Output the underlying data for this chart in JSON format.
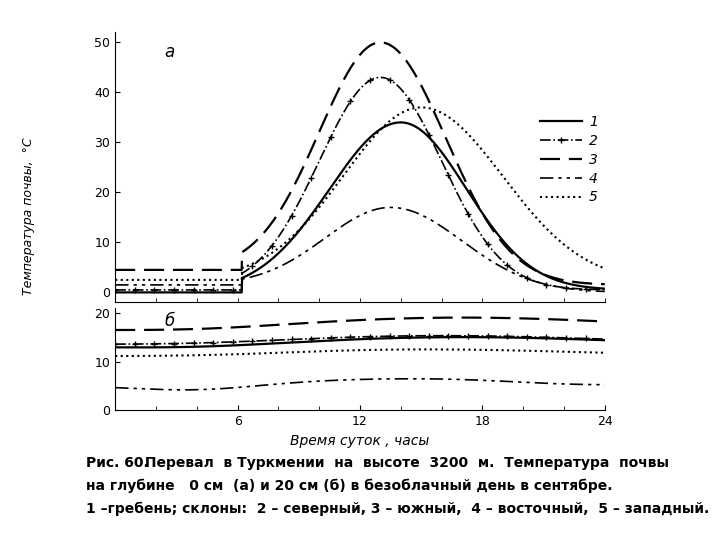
{
  "title_a": "а",
  "title_b": "б",
  "xlabel": "Время суток , часы",
  "ylabel": "Температура почвы,  °С",
  "xlim": [
    0,
    24
  ],
  "xticks": [
    6,
    12,
    18,
    24
  ],
  "ylim_a": [
    -2,
    52
  ],
  "yticks_a": [
    0,
    10,
    20,
    30,
    40,
    50
  ],
  "ylim_b": [
    0,
    21
  ],
  "yticks_b": [
    0,
    10,
    20
  ],
  "legend_labels": [
    "1",
    "2",
    "3",
    "4",
    "5"
  ],
  "background_color": "#ffffff",
  "line_color": "#000000",
  "caption_bold": "Рис. 60.",
  "caption_line1": " Перевал  в Туркмении  на  высоте  3200  м.  Температура  почвы",
  "caption_line2": "на глубине   0 см  (а) и 20 см (б) в безоблачный день в сентябре.",
  "caption_line3": "1 –гребень; склоны:  2 – северный, 3 – южный,  4 – восточный,  5 – западный."
}
